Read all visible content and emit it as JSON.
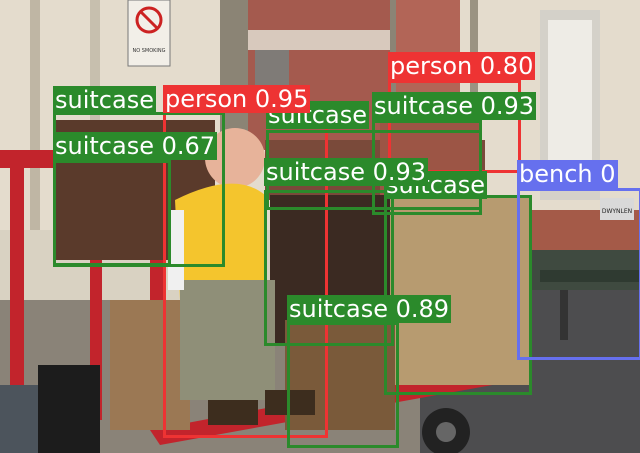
{
  "colors": {
    "person": "#ee3333",
    "suitcase": "#2b8a2b",
    "bench": "#6670ee",
    "label_text": "#ffffff"
  },
  "scene_text": {
    "sign": "NO SMOKING",
    "bench_plate": "DWYNLEN"
  },
  "detections": [
    {
      "label_text": "person 0.80",
      "class": "person"
    },
    {
      "label_text": "person 0.95",
      "class": "person"
    },
    {
      "label_text": "suitcase 0.93",
      "class": "suitcase"
    },
    {
      "label_text": "suitcase 0.67",
      "class": "suitcase"
    },
    {
      "label_text": "suitcase 0.93",
      "class": "suitcase"
    },
    {
      "label_text": "suitcase 0.89",
      "class": "suitcase"
    },
    {
      "label_text": "suitcase",
      "class": "suitcase"
    },
    {
      "label_text": "suitcase",
      "class": "suitcase"
    },
    {
      "label_text": "suitcase",
      "class": "suitcase"
    },
    {
      "label_text": "bench 0",
      "class": "bench"
    }
  ]
}
